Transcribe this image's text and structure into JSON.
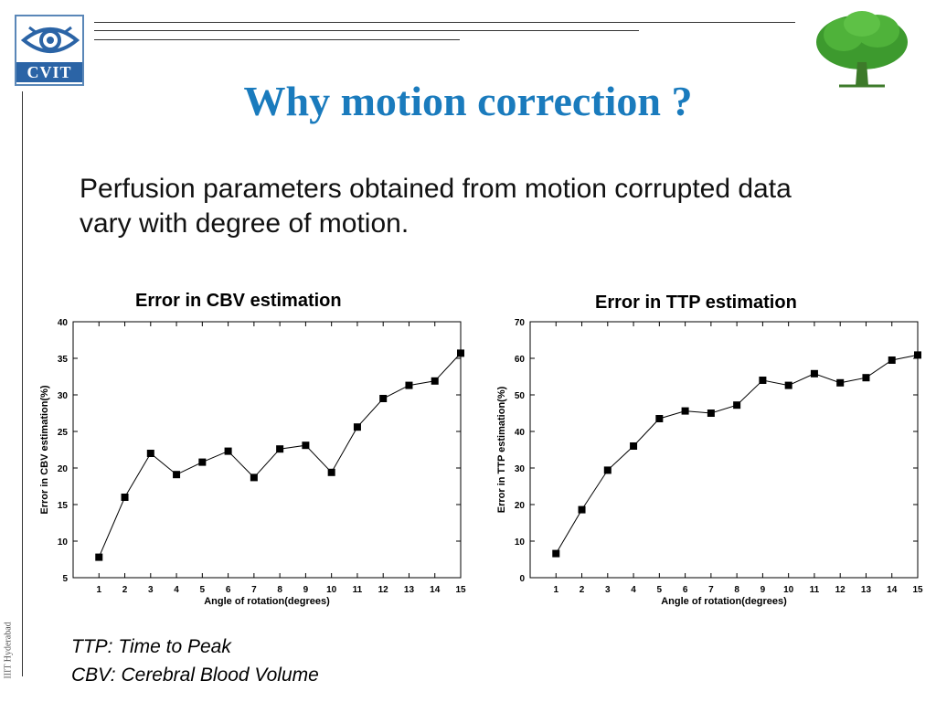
{
  "logo": {
    "label": "CVIT",
    "icon": "eye-icon"
  },
  "tree_icon": "tree-icon",
  "slide": {
    "title": "Why motion correction ?",
    "intro": "Perfusion parameters obtained from motion corrupted data vary with degree of motion.",
    "footnotes": [
      "TTP: Time to Peak",
      "CBV: Cerebral Blood Volume"
    ],
    "side_label": "IIIT Hyderabad"
  },
  "colors": {
    "title": "#1a7bbd",
    "logo_blue": "#2b64a6",
    "tree_green": "#3d9a2e"
  },
  "chart_data": [
    {
      "type": "line",
      "title": "Error in CBV estimation",
      "xlabel": "Angle of rotation(degrees)",
      "ylabel": "Error in CBV estimation(%)",
      "x": [
        1,
        2,
        3,
        4,
        5,
        6,
        7,
        8,
        9,
        10,
        11,
        12,
        13,
        14,
        15
      ],
      "xlim": [
        0,
        15
      ],
      "ylim": [
        5,
        40
      ],
      "yticks": [
        5,
        10,
        15,
        20,
        25,
        30,
        35,
        40
      ],
      "marker": "square",
      "grid": false,
      "series": [
        {
          "values": [
            7.8,
            16.0,
            22.0,
            19.1,
            20.8,
            22.3,
            18.7,
            22.6,
            23.1,
            19.4,
            25.6,
            29.5,
            31.3,
            31.9,
            35.7
          ]
        }
      ]
    },
    {
      "type": "line",
      "title": "Error in TTP estimation",
      "xlabel": "Angle of rotation(degrees)",
      "ylabel": "Error in TTP estimation(%)",
      "x": [
        1,
        2,
        3,
        4,
        5,
        6,
        7,
        8,
        9,
        10,
        11,
        12,
        13,
        14,
        15
      ],
      "xlim": [
        0,
        15
      ],
      "ylim": [
        0,
        70
      ],
      "yticks": [
        0,
        10,
        20,
        30,
        40,
        50,
        60,
        70
      ],
      "marker": "square",
      "grid": false,
      "series": [
        {
          "values": [
            6.6,
            18.6,
            29.4,
            36.0,
            43.5,
            45.6,
            45.0,
            47.2,
            54.0,
            52.6,
            55.8,
            53.3,
            54.7,
            59.5,
            60.9
          ]
        }
      ]
    }
  ]
}
